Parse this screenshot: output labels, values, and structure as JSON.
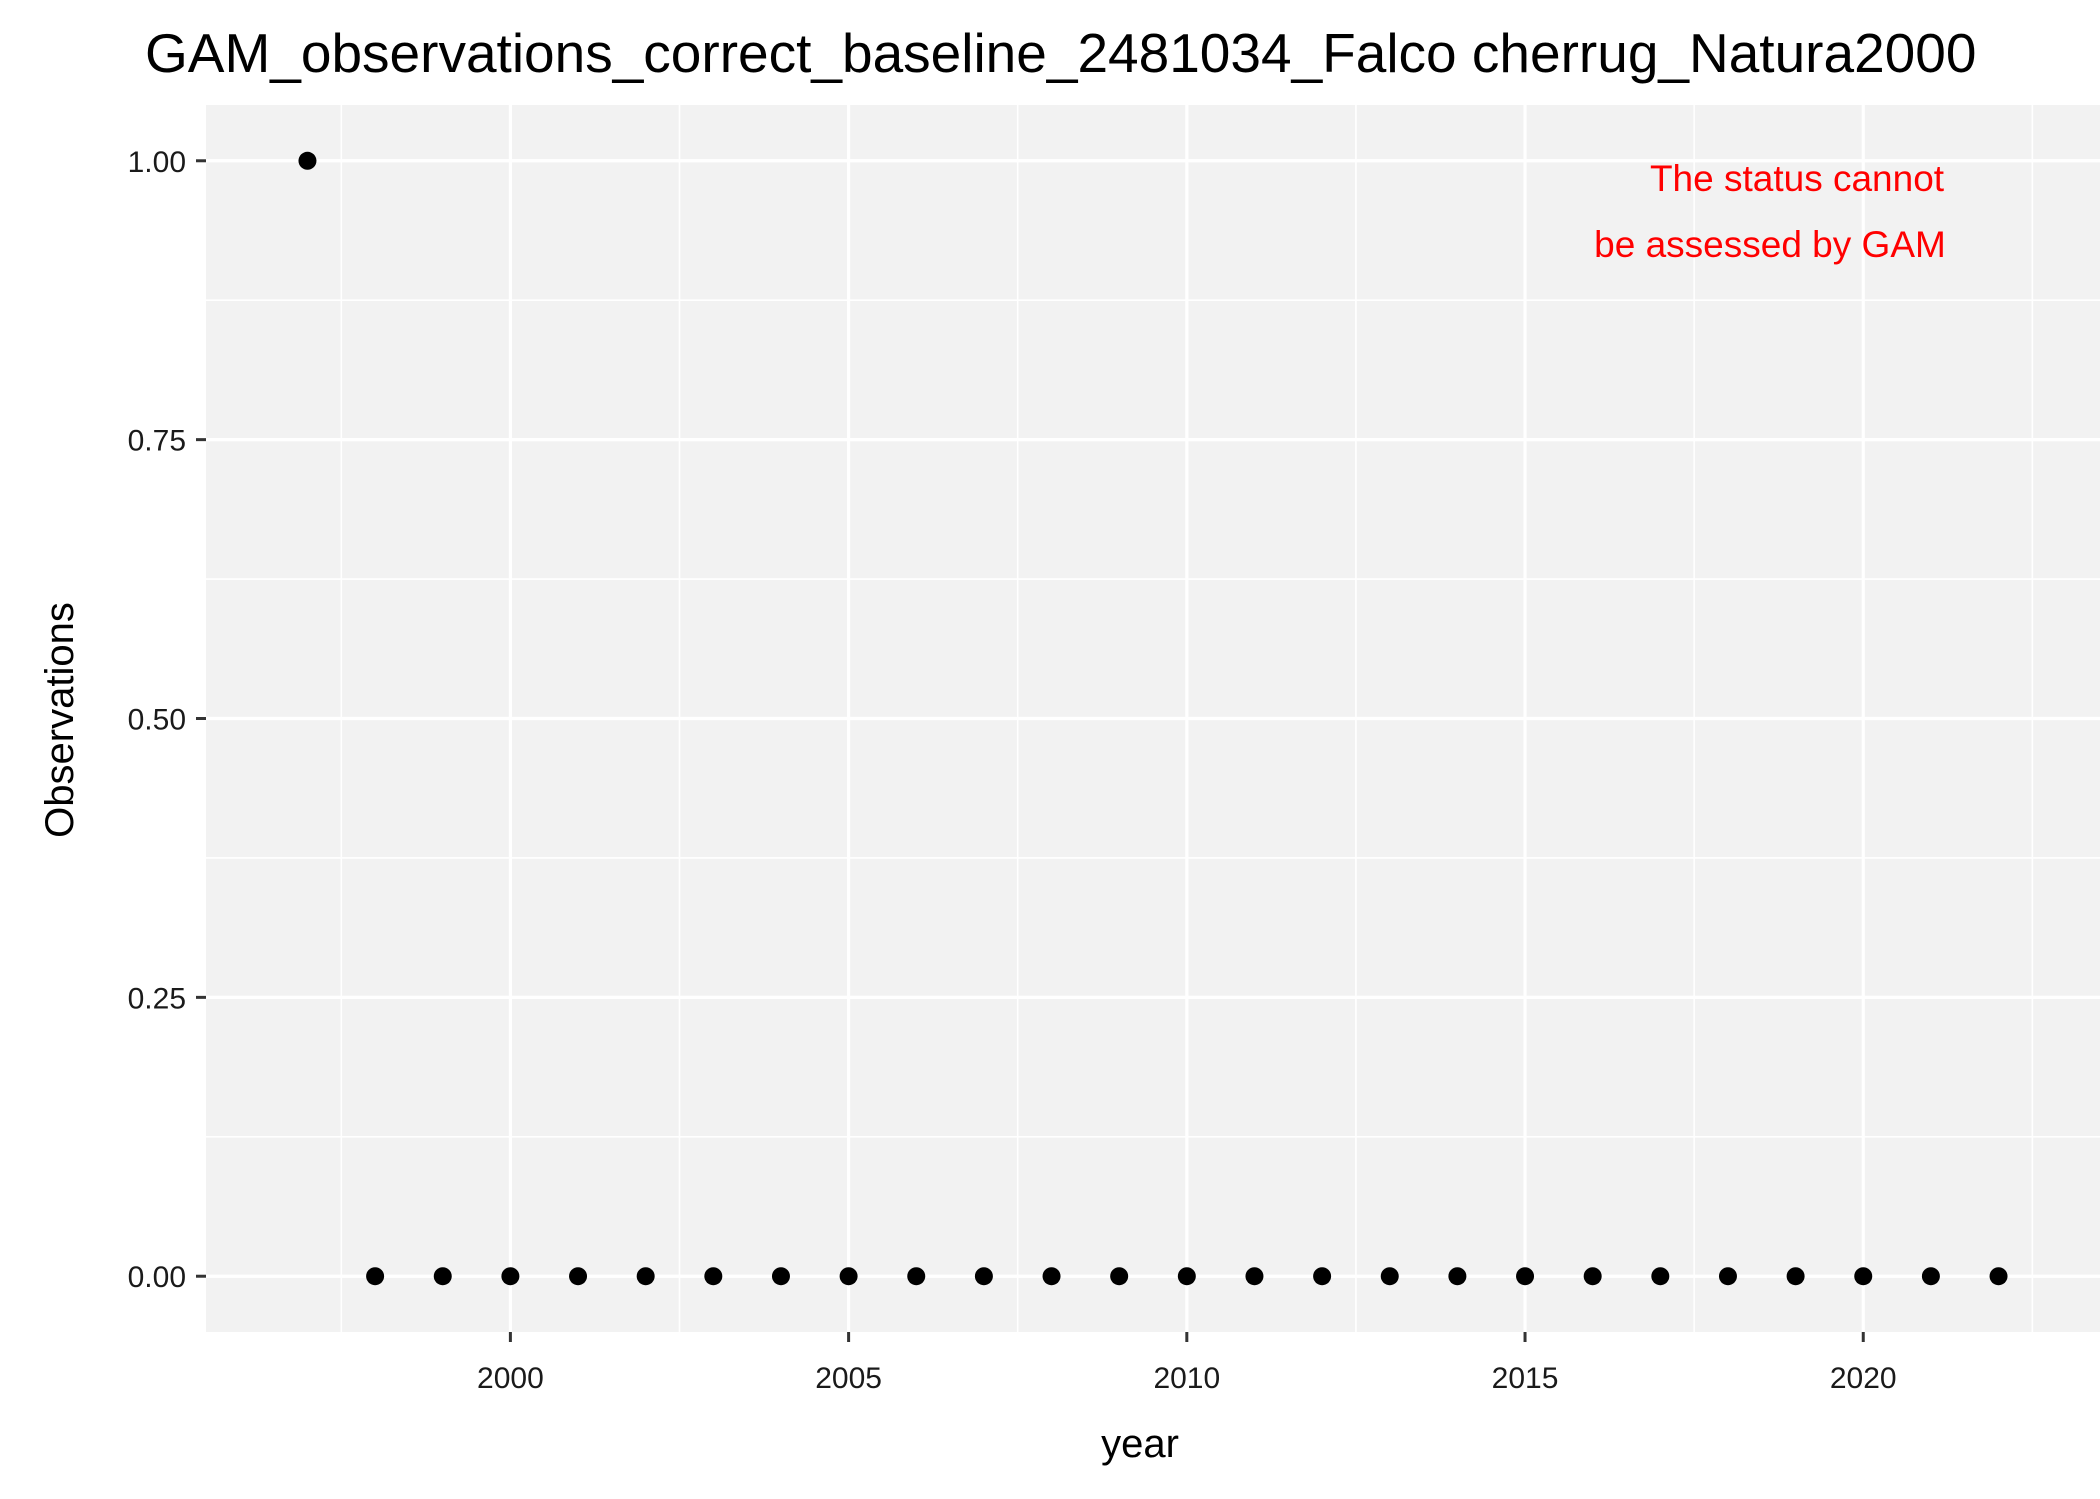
{
  "chart_data": {
    "type": "scatter",
    "title": "GAM_observations_correct_baseline_2481034_Falco cherrug_Natura2000",
    "xlabel": "year",
    "ylabel": "Observations",
    "xlim": [
      1995.5,
      2023.5
    ],
    "ylim": [
      -0.05,
      1.05
    ],
    "x_ticks": [
      2000,
      2005,
      2010,
      2015,
      2020
    ],
    "x_tick_labels": [
      "2000",
      "2005",
      "2010",
      "2015",
      "2020"
    ],
    "y_ticks": [
      0,
      0.25,
      0.5,
      0.75,
      1.0
    ],
    "y_tick_labels": [
      "0.00",
      "0.25",
      "0.50",
      "0.75",
      "1.00"
    ],
    "grid": true,
    "annotation": [
      "The status cannot",
      "be assessed by GAM"
    ],
    "series": [
      {
        "x": [
          1997,
          1998,
          1999,
          2000,
          2001,
          2002,
          2003,
          2004,
          2005,
          2006,
          2007,
          2008,
          2009,
          2010,
          2011,
          2012,
          2013,
          2014,
          2015,
          2016,
          2017,
          2018,
          2019,
          2020,
          2021,
          2022
        ],
        "y": [
          1,
          0,
          0,
          0,
          0,
          0,
          0,
          0,
          0,
          0,
          0,
          0,
          0,
          0,
          0,
          0,
          0,
          0,
          0,
          0,
          0,
          0,
          0,
          0,
          0,
          0
        ]
      }
    ],
    "colors": {
      "panel": "#f2f2f2",
      "grid": "#ffffff",
      "points": "#000000",
      "annotation": "#ff0000"
    }
  }
}
